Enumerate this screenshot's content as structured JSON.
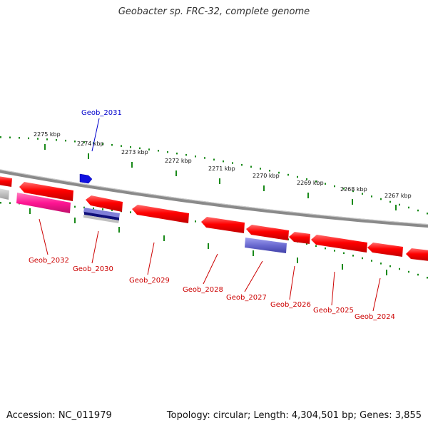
{
  "title": "Geobacter sp. FRC-32, complete genome",
  "footer": {
    "accession": "Accession: NC_011979",
    "info": "Topology: circular; Length: 4,304,501 bp; Genes: 3,855"
  },
  "kbp_ticks": [
    "2275 kbp",
    "2274 kbp",
    "2273 kbp",
    "2272 kbp",
    "2271 kbp",
    "2270 kbp",
    "2269 kbp",
    "2268 kbp",
    "2267 kbp"
  ],
  "gene_labels": {
    "geob_2031": "Geob_2031",
    "geob_2032": "Geob_2032",
    "geob_2030": "Geob_2030",
    "geob_2029": "Geob_2029",
    "geob_2028": "Geob_2028",
    "geob_2027": "Geob_2027",
    "geob_2026": "Geob_2026",
    "geob_2025": "Geob_2025",
    "geob_2024": "Geob_2024"
  },
  "colors": {
    "cds": "#ff0000",
    "cds_pink": "#ff1493",
    "cds_blue": "#1f1fcc",
    "cds_lavender": "#7070d0",
    "cds_gray": "#b0b0b0",
    "backbone": "#7a7a7a",
    "tick": "#1a8a1a",
    "label_red": "#cc0000",
    "label_blue": "#0000cc"
  }
}
